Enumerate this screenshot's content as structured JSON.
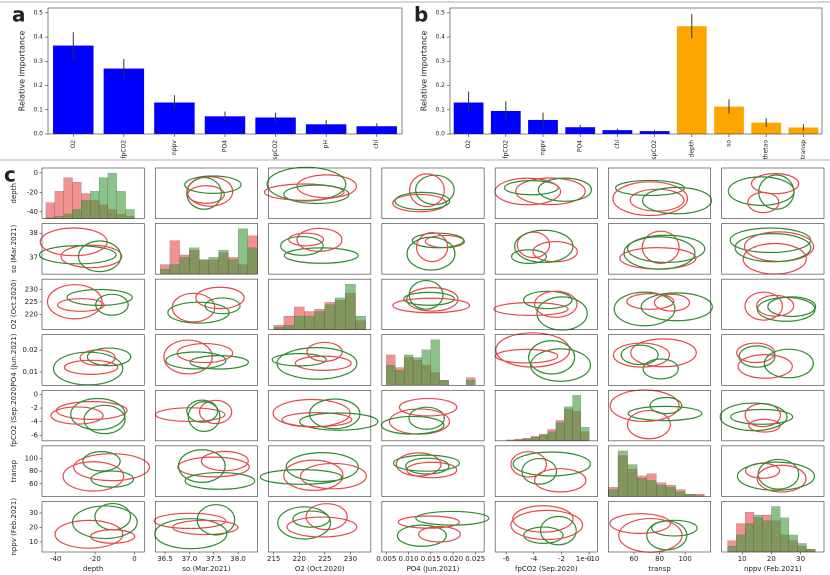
{
  "chart_data": [
    {
      "type": "bar",
      "panel_label": "a",
      "ylabel": "Relative importance",
      "categories": [
        "O2",
        "fpCO2",
        "nppv",
        "PO4",
        "spCO2",
        "pH",
        "chl"
      ],
      "values": [
        0.365,
        0.27,
        0.13,
        0.073,
        0.068,
        0.04,
        0.032
      ],
      "errors": [
        0.055,
        0.04,
        0.03,
        0.02,
        0.02,
        0.018,
        0.012
      ],
      "colors": [
        "#0000ff",
        "#0000ff",
        "#0000ff",
        "#0000ff",
        "#0000ff",
        "#0000ff",
        "#0000ff"
      ],
      "ylim": [
        0,
        0.52
      ],
      "yticks": [
        {
          "value": 0,
          "label": "0.0"
        },
        0.1,
        0.2,
        0.3,
        0.4,
        0.5
      ]
    },
    {
      "type": "bar",
      "panel_label": "b",
      "ylabel": "Relative importance",
      "categories": [
        "O2",
        "fpCO2",
        "nppv",
        "PO4",
        "chl",
        "spCO2",
        "depth",
        "so",
        "thetao",
        "transp"
      ],
      "values": [
        0.13,
        0.095,
        0.058,
        0.028,
        0.016,
        0.012,
        0.445,
        0.113,
        0.047,
        0.027
      ],
      "errors": [
        0.045,
        0.04,
        0.03,
        0.01,
        0.006,
        0.005,
        0.05,
        0.03,
        0.018,
        0.013
      ],
      "colors": [
        "#0000ff",
        "#0000ff",
        "#0000ff",
        "#0000ff",
        "#0000ff",
        "#0000ff",
        "#ffa500",
        "#ffa500",
        "#ffa500",
        "#ffa500"
      ],
      "ylim": [
        0,
        0.52
      ],
      "yticks": [
        {
          "value": 0,
          "label": "0.0"
        },
        0.1,
        0.2,
        0.3,
        0.4,
        0.5
      ]
    },
    {
      "type": "pairplot",
      "panel_label": "c",
      "variables": [
        {
          "label": "depth",
          "lim": [
            -47,
            5
          ],
          "xticks": [
            -40,
            -20,
            0
          ],
          "yticks": [
            -40,
            -20,
            0
          ],
          "hist": {
            "bins": [
              -45,
              -40.5,
              -36,
              -31.5,
              -27,
              -22.5,
              -18,
              -13.5,
              -9,
              -4.5,
              0
            ],
            "series": [
              {
                "color": "#e8474a",
                "values": [
                  0.35,
                  0.6,
                  0.9,
                  0.8,
                  0.55,
                  0.4,
                  0.3,
                  0.2,
                  0.1,
                  0.05
                ]
              },
              {
                "color": "#3c9a3c",
                "values": [
                  0.02,
                  0.05,
                  0.1,
                  0.2,
                  0.4,
                  0.6,
                  0.9,
                  1.0,
                  0.6,
                  0.2
                ]
              }
            ]
          }
        },
        {
          "label": "so (Mar.2021)",
          "lim": [
            36.3,
            38.4
          ],
          "xticks": [
            36.5,
            {
              "value": 37,
              "label": "37.0"
            },
            37.5,
            {
              "value": 38,
              "label": "38.0"
            }
          ],
          "yticks": [
            37,
            38
          ],
          "hist": {
            "bins": [
              36.4,
              36.6,
              36.8,
              37,
              37.2,
              37.4,
              37.6,
              37.8,
              38,
              38.2,
              38.4
            ],
            "series": [
              {
                "color": "#e8474a",
                "values": [
                  0.2,
                  0.7,
                  0.4,
                  0.5,
                  0.3,
                  0.3,
                  0.45,
                  0.35,
                  0.2,
                  0.8
                ]
              },
              {
                "color": "#3c9a3c",
                "values": [
                  0.1,
                  0.2,
                  0.35,
                  0.55,
                  0.3,
                  0.35,
                  0.5,
                  0.3,
                  0.95,
                  0.55
                ]
              }
            ]
          }
        },
        {
          "label": "O2 (Oct.2020)",
          "lim": [
            214,
            234
          ],
          "xticks": [
            215,
            220,
            225,
            230
          ],
          "yticks": [
            220,
            225,
            230
          ],
          "hist": {
            "bins": [
              215,
              217,
              219,
              221,
              223,
              225,
              227,
              229,
              231,
              233
            ],
            "series": [
              {
                "color": "#e8474a",
                "values": [
                  0.1,
                  0.3,
                  0.5,
                  0.4,
                  0.45,
                  0.6,
                  0.65,
                  0.8,
                  0.2
                ]
              },
              {
                "color": "#3c9a3c",
                "values": [
                  0.05,
                  0.1,
                  0.3,
                  0.3,
                  0.4,
                  0.55,
                  0.7,
                  1.0,
                  0.3
                ]
              }
            ]
          }
        },
        {
          "label": "PO4 (Jun.2021)",
          "lim": [
            0.004,
            0.027
          ],
          "xticks": [
            0.005,
            {
              "value": 0.01,
              "label": "0.010"
            },
            0.015,
            {
              "value": 0.02,
              "label": "0.020"
            },
            0.025
          ],
          "yticks": [
            0.01,
            0.02
          ],
          "hist": {
            "bins": [
              0.005,
              0.007,
              0.009,
              0.011,
              0.013,
              0.015,
              0.017,
              0.019,
              0.021,
              0.023,
              0.025
            ],
            "series": [
              {
                "color": "#e8474a",
                "values": [
                  0.6,
                  0.35,
                  0.55,
                  0.5,
                  0.4,
                  0.25,
                  0.1,
                  0,
                  0,
                  0.15
                ]
              },
              {
                "color": "#3c9a3c",
                "values": [
                  0.4,
                  0.3,
                  0.6,
                  0.55,
                  0.7,
                  0.9,
                  0.1,
                  0,
                  0,
                  0.1
                ]
              }
            ]
          }
        },
        {
          "label": "fpCO2 (Sep.2020)",
          "offset_text": "1e−10",
          "lim": [
            -6.8,
            0.6
          ],
          "xticks": [
            -6,
            -4,
            -2,
            0
          ],
          "yticks": [
            -6,
            -4,
            -2,
            0
          ],
          "hist": {
            "bins": [
              -6,
              -5.4,
              -4.8,
              -4.2,
              -3.6,
              -3,
              -2.4,
              -1.8,
              -1.2,
              -0.6,
              0
            ],
            "series": [
              {
                "color": "#e8474a",
                "values": [
                  0.02,
                  0.04,
                  0.06,
                  0.1,
                  0.15,
                  0.25,
                  0.45,
                  0.7,
                  0.65,
                  0.2
                ]
              },
              {
                "color": "#3c9a3c",
                "values": [
                  0,
                  0.02,
                  0.04,
                  0.08,
                  0.12,
                  0.2,
                  0.4,
                  0.75,
                  1.0,
                  0.3
                ]
              }
            ]
          }
        },
        {
          "label": "transp",
          "lim": [
            40,
            120
          ],
          "xticks": [
            60,
            80,
            100
          ],
          "yticks": [
            60,
            80,
            100
          ],
          "hist": {
            "bins": [
              40,
              47.5,
              55,
              62.5,
              70,
              77.5,
              85,
              92.5,
              100,
              107.5,
              115
            ],
            "series": [
              {
                "color": "#e8474a",
                "values": [
                  0.2,
                  0.9,
                  0.6,
                  0.45,
                  0.5,
                  0.3,
                  0.25,
                  0.15,
                  0.05,
                  0.05
                ]
              },
              {
                "color": "#3c9a3c",
                "values": [
                  0.15,
                  1.0,
                  0.7,
                  0.4,
                  0.35,
                  0.25,
                  0.2,
                  0.1,
                  0.05,
                  0.02
                ]
              }
            ]
          }
        },
        {
          "label": "nppv (Feb.2021)",
          "lim": [
            3,
            38
          ],
          "xticks": [
            10,
            20,
            30
          ],
          "yticks": [
            10,
            20,
            30
          ],
          "hist": {
            "bins": [
              5,
              8,
              11,
              14,
              17,
              20,
              23,
              26,
              29,
              32,
              35
            ],
            "series": [
              {
                "color": "#e8474a",
                "values": [
                  0.2,
                  0.5,
                  0.7,
                  0.6,
                  0.65,
                  0.55,
                  0.3,
                  0.2,
                  0.1,
                  0.05
                ]
              },
              {
                "color": "#3c9a3c",
                "values": [
                  0.1,
                  0.3,
                  0.5,
                  0.65,
                  0.55,
                  0.8,
                  0.6,
                  0.3,
                  0.15,
                  0.05
                ]
              }
            ]
          }
        }
      ]
    }
  ]
}
